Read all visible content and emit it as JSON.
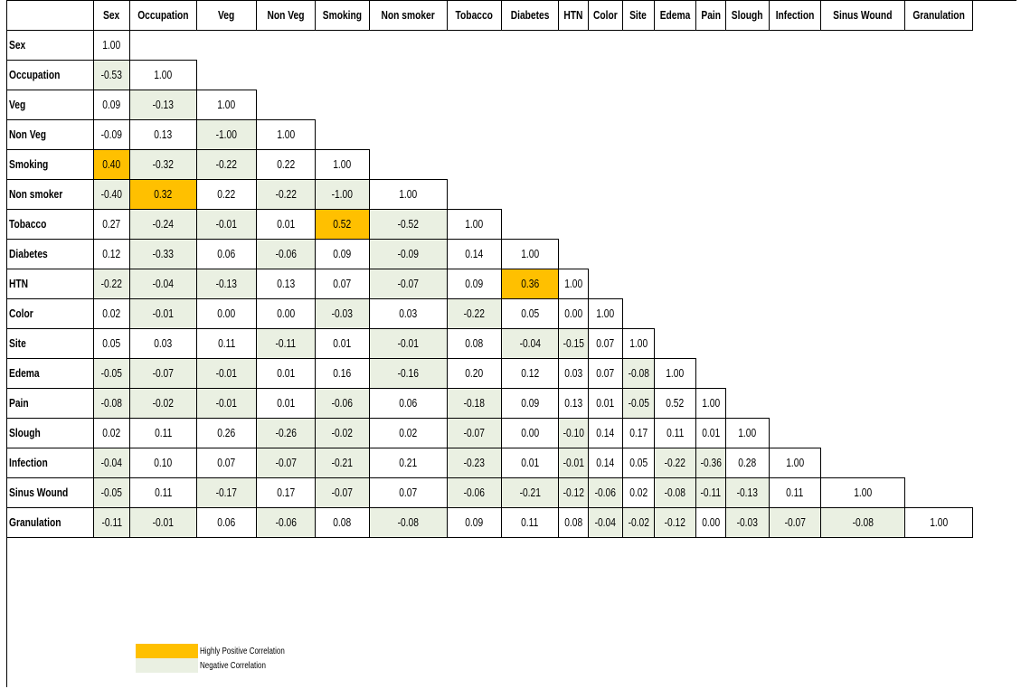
{
  "colors": {
    "highly_positive": "#ffc000",
    "negative": "#eaf0e2"
  },
  "chart_data": {
    "type": "table",
    "variables": [
      "Sex",
      "Occupation",
      "Veg",
      "Non Veg",
      "Smoking",
      "Non smoker",
      "Tobacco",
      "Diabetes",
      "HTN",
      "Color",
      "Site",
      "Edema",
      "Pain",
      "Slough",
      "Infection",
      "Sinus Wound",
      "Granulation"
    ],
    "rows": [
      {
        "name": "Sex",
        "values": [
          "1.00"
        ]
      },
      {
        "name": "Occupation",
        "values": [
          "-0.53",
          "1.00"
        ]
      },
      {
        "name": "Veg",
        "values": [
          "0.09",
          "-0.13",
          "1.00"
        ]
      },
      {
        "name": "Non Veg",
        "values": [
          "-0.09",
          "0.13",
          "-1.00",
          "1.00"
        ]
      },
      {
        "name": "Smoking",
        "values": [
          "0.40",
          "-0.32",
          "-0.22",
          "0.22",
          "1.00"
        ]
      },
      {
        "name": "Non smoker",
        "values": [
          "-0.40",
          "0.32",
          "0.22",
          "-0.22",
          "-1.00",
          "1.00"
        ]
      },
      {
        "name": "Tobacco",
        "values": [
          "0.27",
          "-0.24",
          "-0.01",
          "0.01",
          "0.52",
          "-0.52",
          "1.00"
        ]
      },
      {
        "name": "Diabetes",
        "values": [
          "0.12",
          "-0.33",
          "0.06",
          "-0.06",
          "0.09",
          "-0.09",
          "0.14",
          "1.00"
        ]
      },
      {
        "name": "HTN",
        "values": [
          "-0.22",
          "-0.04",
          "-0.13",
          "0.13",
          "0.07",
          "-0.07",
          "0.09",
          "0.36",
          "1.00"
        ]
      },
      {
        "name": "Color",
        "values": [
          "0.02",
          "-0.01",
          "0.00",
          "0.00",
          "-0.03",
          "0.03",
          "-0.22",
          "0.05",
          "0.00",
          "1.00"
        ]
      },
      {
        "name": "Site",
        "values": [
          "0.05",
          "0.03",
          "0.11",
          "-0.11",
          "0.01",
          "-0.01",
          "0.08",
          "-0.04",
          "-0.15",
          "0.07",
          "1.00"
        ]
      },
      {
        "name": "Edema",
        "values": [
          "-0.05",
          "-0.07",
          "-0.01",
          "0.01",
          "0.16",
          "-0.16",
          "0.20",
          "0.12",
          "0.03",
          "0.07",
          "-0.08",
          "1.00"
        ]
      },
      {
        "name": "Pain",
        "values": [
          "-0.08",
          "-0.02",
          "-0.01",
          "0.01",
          "-0.06",
          "0.06",
          "-0.18",
          "0.09",
          "0.13",
          "0.01",
          "-0.05",
          "0.52",
          "1.00"
        ]
      },
      {
        "name": "Slough",
        "values": [
          "0.02",
          "0.11",
          "0.26",
          "-0.26",
          "-0.02",
          "0.02",
          "-0.07",
          "0.00",
          "-0.10",
          "0.14",
          "0.17",
          "0.11",
          "0.01",
          "1.00"
        ]
      },
      {
        "name": "Infection",
        "values": [
          "-0.04",
          "0.10",
          "0.07",
          "-0.07",
          "-0.21",
          "0.21",
          "-0.23",
          "0.01",
          "-0.01",
          "0.14",
          "0.05",
          "-0.22",
          "-0.36",
          "0.28",
          "1.00"
        ]
      },
      {
        "name": "Sinus Wound",
        "values": [
          "-0.05",
          "0.11",
          "-0.17",
          "0.17",
          "-0.07",
          "0.07",
          "-0.06",
          "-0.21",
          "-0.12",
          "-0.06",
          "0.02",
          "-0.08",
          "-0.11",
          "-0.13",
          "0.11",
          "1.00"
        ]
      },
      {
        "name": "Granulation",
        "values": [
          "-0.11",
          "-0.01",
          "0.06",
          "-0.06",
          "0.08",
          "-0.08",
          "0.09",
          "0.11",
          "0.08",
          "-0.04",
          "-0.02",
          "-0.12",
          "0.00",
          "-0.03",
          "-0.07",
          "-0.08",
          "1.00"
        ]
      }
    ],
    "highlighted": [
      {
        "row": "Smoking",
        "col": "Sex"
      },
      {
        "row": "Non smoker",
        "col": "Occupation"
      },
      {
        "row": "Tobacco",
        "col": "Smoking"
      },
      {
        "row": "HTN",
        "col": "Diabetes"
      }
    ],
    "shaded_negative": [
      {
        "row": "Occupation",
        "col": "Sex"
      },
      {
        "row": "Veg",
        "col": "Occupation"
      },
      {
        "row": "Non Veg",
        "col": "Veg"
      },
      {
        "row": "Smoking",
        "col": "Occupation"
      },
      {
        "row": "Smoking",
        "col": "Veg"
      },
      {
        "row": "Non smoker",
        "col": "Sex"
      },
      {
        "row": "Non smoker",
        "col": "Non Veg"
      },
      {
        "row": "Non smoker",
        "col": "Smoking"
      },
      {
        "row": "Tobacco",
        "col": "Occupation"
      },
      {
        "row": "Tobacco",
        "col": "Veg"
      },
      {
        "row": "Tobacco",
        "col": "Non smoker"
      },
      {
        "row": "Diabetes",
        "col": "Occupation"
      },
      {
        "row": "Diabetes",
        "col": "Non Veg"
      },
      {
        "row": "Diabetes",
        "col": "Non smoker"
      },
      {
        "row": "HTN",
        "col": "Sex"
      },
      {
        "row": "HTN",
        "col": "Occupation"
      },
      {
        "row": "HTN",
        "col": "Veg"
      },
      {
        "row": "HTN",
        "col": "Non smoker"
      },
      {
        "row": "Color",
        "col": "Occupation"
      },
      {
        "row": "Color",
        "col": "Smoking"
      },
      {
        "row": "Color",
        "col": "Tobacco"
      },
      {
        "row": "Site",
        "col": "Non Veg"
      },
      {
        "row": "Site",
        "col": "Non smoker"
      },
      {
        "row": "Site",
        "col": "Diabetes"
      },
      {
        "row": "Site",
        "col": "HTN"
      },
      {
        "row": "Edema",
        "col": "Sex"
      },
      {
        "row": "Edema",
        "col": "Occupation"
      },
      {
        "row": "Edema",
        "col": "Veg"
      },
      {
        "row": "Edema",
        "col": "Non smoker"
      },
      {
        "row": "Edema",
        "col": "Site"
      },
      {
        "row": "Pain",
        "col": "Sex"
      },
      {
        "row": "Pain",
        "col": "Occupation"
      },
      {
        "row": "Pain",
        "col": "Veg"
      },
      {
        "row": "Pain",
        "col": "Smoking"
      },
      {
        "row": "Pain",
        "col": "Tobacco"
      },
      {
        "row": "Pain",
        "col": "Site"
      },
      {
        "row": "Slough",
        "col": "Non Veg"
      },
      {
        "row": "Slough",
        "col": "Smoking"
      },
      {
        "row": "Slough",
        "col": "Tobacco"
      },
      {
        "row": "Slough",
        "col": "HTN"
      },
      {
        "row": "Infection",
        "col": "Sex"
      },
      {
        "row": "Infection",
        "col": "Non Veg"
      },
      {
        "row": "Infection",
        "col": "Smoking"
      },
      {
        "row": "Infection",
        "col": "Tobacco"
      },
      {
        "row": "Infection",
        "col": "HTN"
      },
      {
        "row": "Infection",
        "col": "Edema"
      },
      {
        "row": "Infection",
        "col": "Pain"
      },
      {
        "row": "Sinus Wound",
        "col": "Sex"
      },
      {
        "row": "Sinus Wound",
        "col": "Veg"
      },
      {
        "row": "Sinus Wound",
        "col": "Smoking"
      },
      {
        "row": "Sinus Wound",
        "col": "Tobacco"
      },
      {
        "row": "Sinus Wound",
        "col": "Diabetes"
      },
      {
        "row": "Sinus Wound",
        "col": "HTN"
      },
      {
        "row": "Sinus Wound",
        "col": "Color"
      },
      {
        "row": "Sinus Wound",
        "col": "Edema"
      },
      {
        "row": "Sinus Wound",
        "col": "Pain"
      },
      {
        "row": "Sinus Wound",
        "col": "Slough"
      },
      {
        "row": "Granulation",
        "col": "Sex"
      },
      {
        "row": "Granulation",
        "col": "Occupation"
      },
      {
        "row": "Granulation",
        "col": "Non Veg"
      },
      {
        "row": "Granulation",
        "col": "Non smoker"
      },
      {
        "row": "Granulation",
        "col": "Color"
      },
      {
        "row": "Granulation",
        "col": "Site"
      },
      {
        "row": "Granulation",
        "col": "Edema"
      },
      {
        "row": "Granulation",
        "col": "Slough"
      },
      {
        "row": "Granulation",
        "col": "Infection"
      },
      {
        "row": "Granulation",
        "col": "Sinus Wound"
      }
    ],
    "legend": [
      {
        "label": "Highly Positive Correlation",
        "color": "#ffc000"
      },
      {
        "label": "Negative Correlation",
        "color": "#eaf0e2"
      }
    ]
  }
}
